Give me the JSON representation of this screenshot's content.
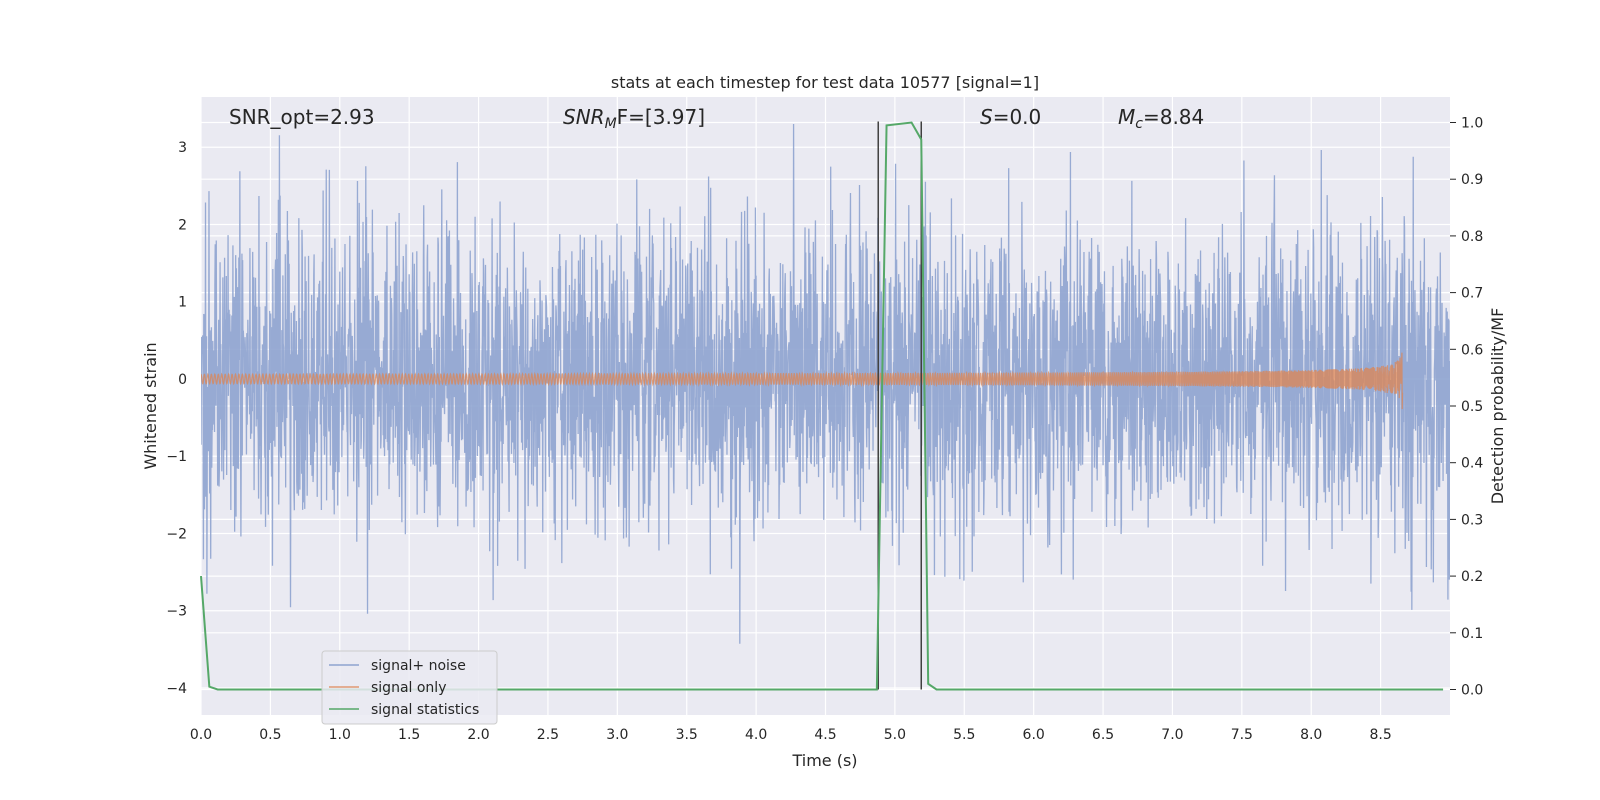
{
  "chart_data": {
    "type": "line",
    "title": "stats at each timestep for test data 10577 [signal=1]",
    "xlabel": "Time (s)",
    "ylabel": "Whitened strain",
    "y2label": "Detection probability/MF",
    "xlim": [
      0,
      9.0
    ],
    "ylim": [
      -4.35,
      3.65
    ],
    "y2lim": [
      -0.045,
      1.045
    ],
    "x_ticks": [
      0.0,
      0.5,
      1.0,
      1.5,
      2.0,
      2.5,
      3.0,
      3.5,
      4.0,
      4.5,
      5.0,
      5.5,
      6.0,
      6.5,
      7.0,
      7.5,
      8.0,
      8.5
    ],
    "x_tick_labels": [
      "0.0",
      "0.5",
      "1.0",
      "1.5",
      "2.0",
      "2.5",
      "3.0",
      "3.5",
      "4.0",
      "4.5",
      "5.0",
      "5.5",
      "6.0",
      "6.5",
      "7.0",
      "7.5",
      "8.0",
      "8.5"
    ],
    "y_ticks": [
      3,
      2,
      1,
      0,
      -1,
      -2,
      -3,
      -4
    ],
    "y_tick_labels": [
      "3",
      "2",
      "1",
      "0",
      "−1",
      "−2",
      "−3",
      "−4"
    ],
    "y2_ticks": [
      1.0,
      0.9,
      0.8,
      0.7,
      0.6,
      0.5,
      0.4,
      0.3,
      0.2,
      0.1,
      0.0
    ],
    "y2_tick_labels": [
      "1.0",
      "0.9",
      "0.8",
      "0.7",
      "0.6",
      "0.5",
      "0.4",
      "0.3",
      "0.2",
      "0.1",
      "0.0"
    ],
    "annotations": {
      "snr_opt": "SNR_opt=2.93",
      "snr_mf_base": "SNR",
      "snr_mf_sub": "M",
      "snr_mf_rest": "F=[3.97]",
      "s_italic": "S",
      "s_rest": "=0.0",
      "mc_base": "M",
      "mc_sub": "c",
      "mc_rest": "=8.84"
    },
    "vlines": [
      4.88,
      5.19
    ],
    "legend": {
      "placement": "lower-left",
      "entries": [
        "signal+ noise",
        "signal only",
        "signal statistics"
      ]
    },
    "series": [
      {
        "name": "signal+ noise",
        "axis": "left",
        "color": "#8ea3cf",
        "kind": "noise",
        "t_range": [
          0,
          9.0
        ],
        "approx_std": 1.0
      },
      {
        "name": "signal only",
        "axis": "left",
        "color": "#dd8452",
        "kind": "chirp",
        "t_range": [
          0,
          8.66
        ],
        "peak_time": 8.66,
        "peak_amplitude": 0.42
      },
      {
        "name": "signal statistics",
        "axis": "right",
        "color": "#55a868",
        "x": [
          0.0,
          0.06,
          0.12,
          4.87,
          4.94,
          5.12,
          5.19,
          5.24,
          5.3,
          8.95
        ],
        "y": [
          0.2,
          0.005,
          0.0,
          0.0,
          0.995,
          1.0,
          0.97,
          0.01,
          0.0,
          0.0
        ]
      }
    ]
  }
}
